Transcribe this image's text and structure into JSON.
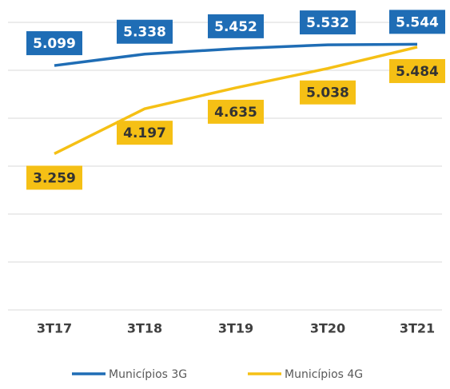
{
  "chart_data": {
    "type": "line",
    "categories": [
      "3T17",
      "3T18",
      "3T19",
      "3T20",
      "3T21"
    ],
    "series": [
      {
        "name": "Municípios 3G",
        "color": "#1f6db5",
        "values": [
          5099,
          5338,
          5452,
          5532,
          5544
        ],
        "value_labels": [
          "5.099",
          "5.338",
          "5.452",
          "5.532",
          "5.544"
        ]
      },
      {
        "name": "Municípios 4G",
        "color": "#f5c015",
        "values": [
          3259,
          4197,
          4635,
          5038,
          5484
        ],
        "value_labels": [
          "3.259",
          "4.197",
          "4.635",
          "5.038",
          "5.484"
        ]
      }
    ],
    "ylim": [
      0,
      6000
    ],
    "yticks": [
      0,
      1000,
      2000,
      3000,
      4000,
      5000,
      6000
    ],
    "grid": true,
    "legend": "bottom"
  }
}
